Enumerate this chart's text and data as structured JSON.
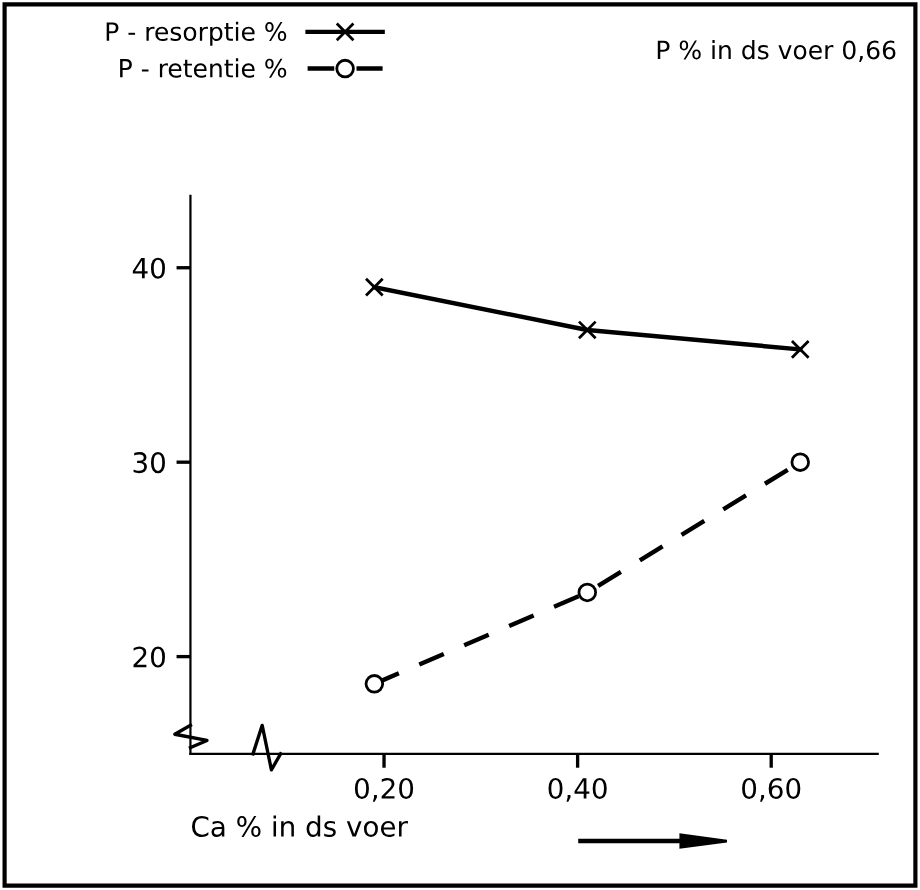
{
  "chart_data": {
    "type": "line",
    "xlabel": "Ca % in ds voer",
    "x": [
      0.19,
      0.41,
      0.63
    ],
    "series": [
      {
        "name": "P - resorptie %",
        "color": "#000000",
        "values": [
          39.0,
          36.8,
          35.8
        ],
        "marker": "cross",
        "line_style": "solid"
      },
      {
        "name": "P - retentie %",
        "color": "#000000",
        "values": [
          18.6,
          23.3,
          30.0
        ],
        "marker": "circle",
        "line_style": "dashed"
      }
    ],
    "xlim": [
      0.0,
      0.71
    ],
    "ylim": [
      15,
      43.7
    ],
    "xticks": [
      {
        "value": 0.2,
        "label": "0,20"
      },
      {
        "value": 0.4,
        "label": "0,40"
      },
      {
        "value": 0.6,
        "label": "0,60"
      }
    ],
    "yticks": [
      20,
      30,
      40
    ],
    "annotations": [
      "P % in ds voer 0,66"
    ],
    "legend": "top left",
    "grid": false
  }
}
